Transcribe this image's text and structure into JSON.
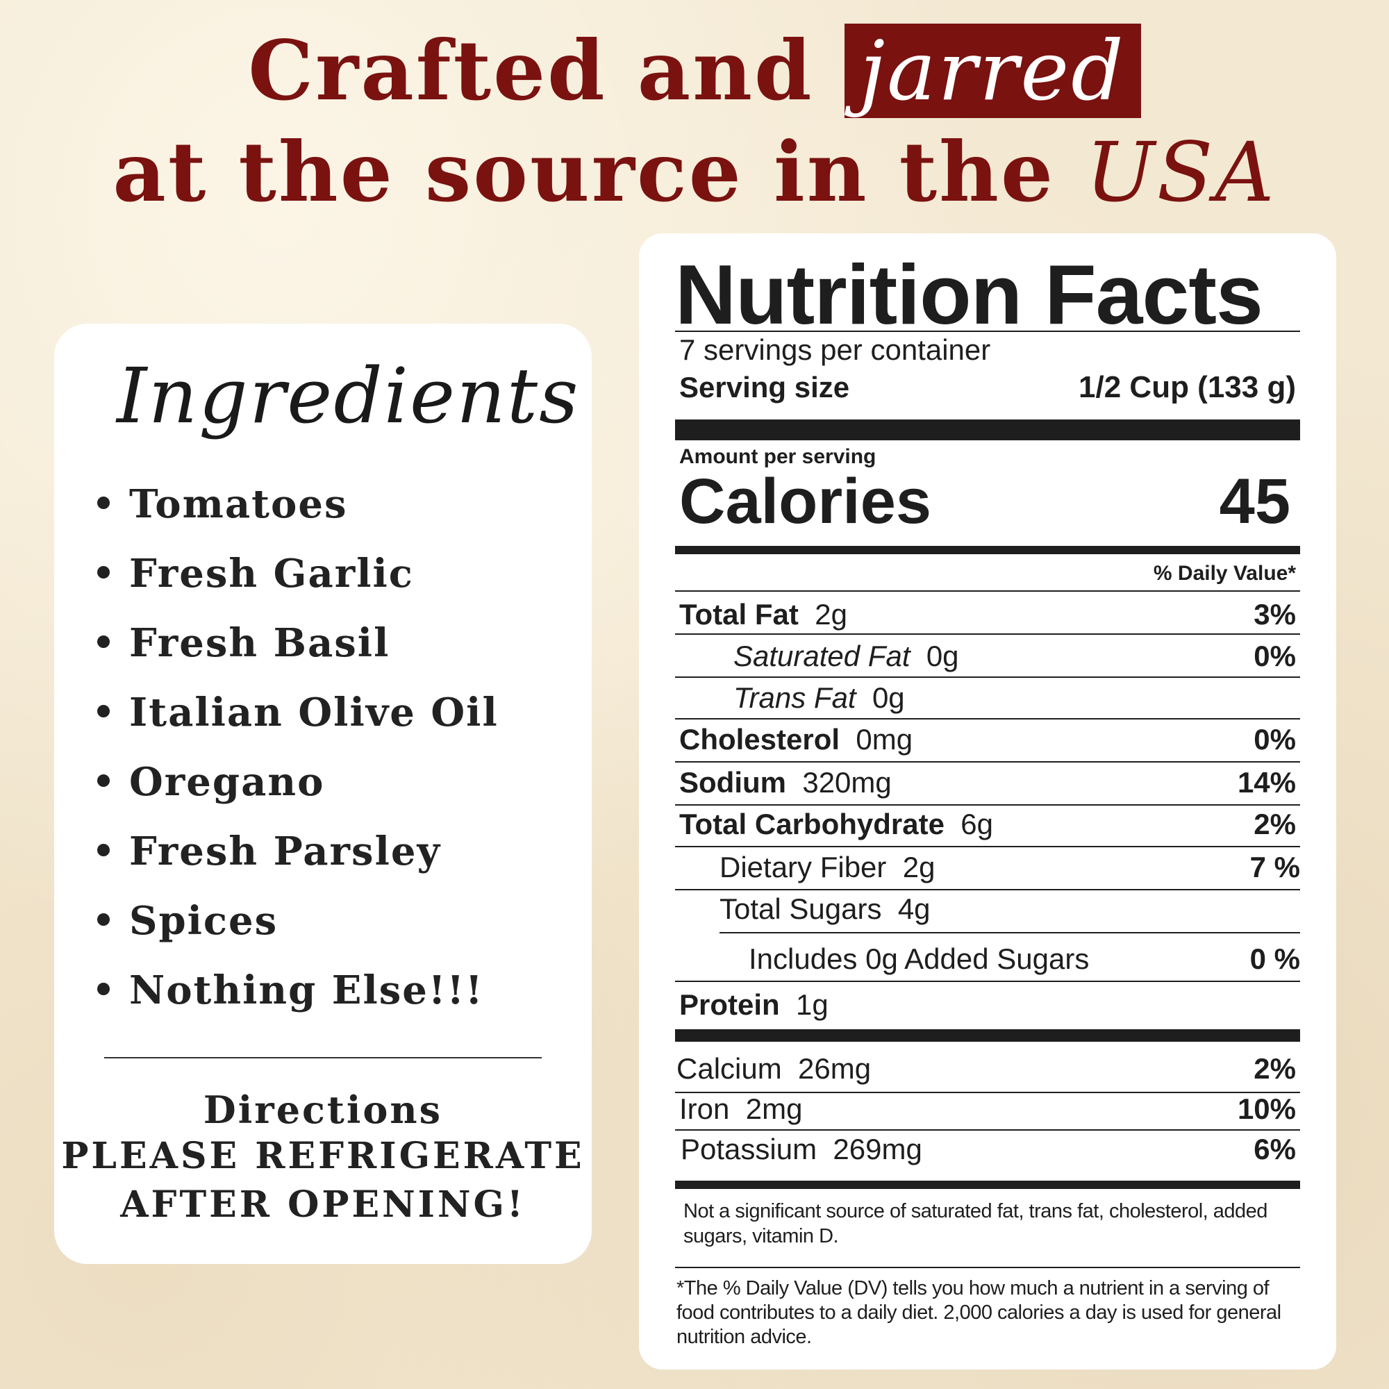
{
  "headline": {
    "line1_plain": "Crafted and",
    "line1_highlight": "jarred",
    "line2_plain": "at the source in the",
    "line2_italic": "USA"
  },
  "ingredients": {
    "title": "Ingredients",
    "items": [
      "Tomatoes",
      "Fresh Garlic",
      "Fresh Basil",
      "Italian Olive Oil",
      "Oregano",
      "Fresh Parsley",
      "Spices",
      "Nothing Else!!!"
    ],
    "directions_title": "Directions",
    "directions_line1": "PLEASE REFRIGERATE",
    "directions_line2": "AFTER OPENING!"
  },
  "nutrition": {
    "title": "Nutrition Facts",
    "servings": "7 servings per container",
    "serving_size_label": "Serving size",
    "serving_size_value": "1/2 Cup (133 g)",
    "amount_per_serving": "Amount per serving",
    "calories_label": "Calories",
    "calories_value": "45",
    "dv_header": "% Daily Value*",
    "total_fat": {
      "label": "Total Fat",
      "amount": "2g",
      "dv": "3%"
    },
    "saturated_fat": {
      "label": "Saturated Fat",
      "amount": "0g",
      "dv": "0%"
    },
    "trans_fat": {
      "label": "Trans Fat",
      "amount": "0g"
    },
    "cholesterol": {
      "label": "Cholesterol",
      "amount": "0mg",
      "dv": "0%"
    },
    "sodium": {
      "label": "Sodium",
      "amount": "320mg",
      "dv": "14%"
    },
    "total_carb": {
      "label": "Total Carbohydrate",
      "amount": "6g",
      "dv": "2%"
    },
    "fiber": {
      "label": "Dietary Fiber",
      "amount": "2g",
      "dv": "7 %"
    },
    "sugars": {
      "label": "Total Sugars",
      "amount": "4g"
    },
    "added_sugars": {
      "label": "Includes 0g Added Sugars",
      "dv": "0 %"
    },
    "protein": {
      "label": "Protein",
      "amount": "1g"
    },
    "calcium": {
      "label": "Calcium",
      "amount": "26mg",
      "dv": "2%"
    },
    "iron": {
      "label": "Iron",
      "amount": "2mg",
      "dv": "10%"
    },
    "potassium": {
      "label": "Potassium",
      "amount": "269mg",
      "dv": "6%"
    },
    "note": "Not a significant source of saturated fat, trans fat, cholesterol, added sugars, vitamin D.",
    "footnote": "*The % Daily Value (DV) tells you how much a nutrient in a serving of food contributes to a daily diet. 2,000 calories a day is used for general nutrition advice."
  },
  "colors": {
    "brand_red": "#7a1210",
    "background": "#f3e8d2"
  }
}
